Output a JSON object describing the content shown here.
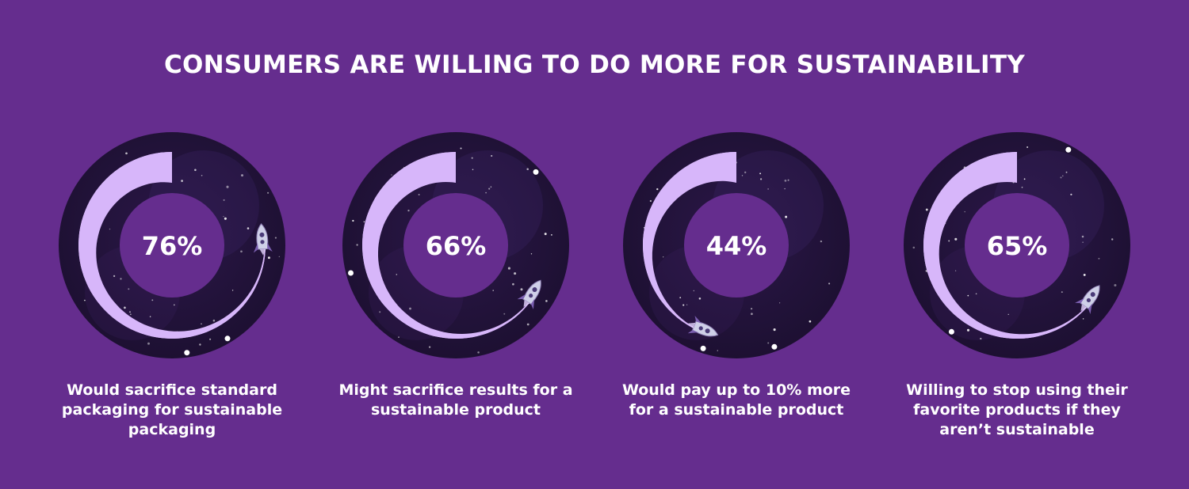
{
  "chart_data": {
    "type": "pie",
    "title": "CONSUMERS ARE WILLING TO DO MORE FOR SUSTAINABILITY",
    "items": [
      {
        "value": 76,
        "label": "76%",
        "caption": "Would sacrifice standard packaging for sustainable packaging"
      },
      {
        "value": 66,
        "label": "66%",
        "caption": "Might sacrifice results for a sustainable product"
      },
      {
        "value": 44,
        "label": "44%",
        "caption": "Would pay up to 10% more for a sustainable product"
      },
      {
        "value": 65,
        "label": "65%",
        "caption": "Willing to stop using their favorite products if they aren’t sustainable"
      }
    ]
  },
  "colors": {
    "background": "#652d8e",
    "ring_dark": "#1d1032",
    "ring_mid": "#2b1748",
    "arc_fill": "#d7b6fa",
    "center_hole": "#652d8e",
    "text": "#ffffff"
  },
  "icons": [
    "rocket-icon",
    "star-icon"
  ]
}
